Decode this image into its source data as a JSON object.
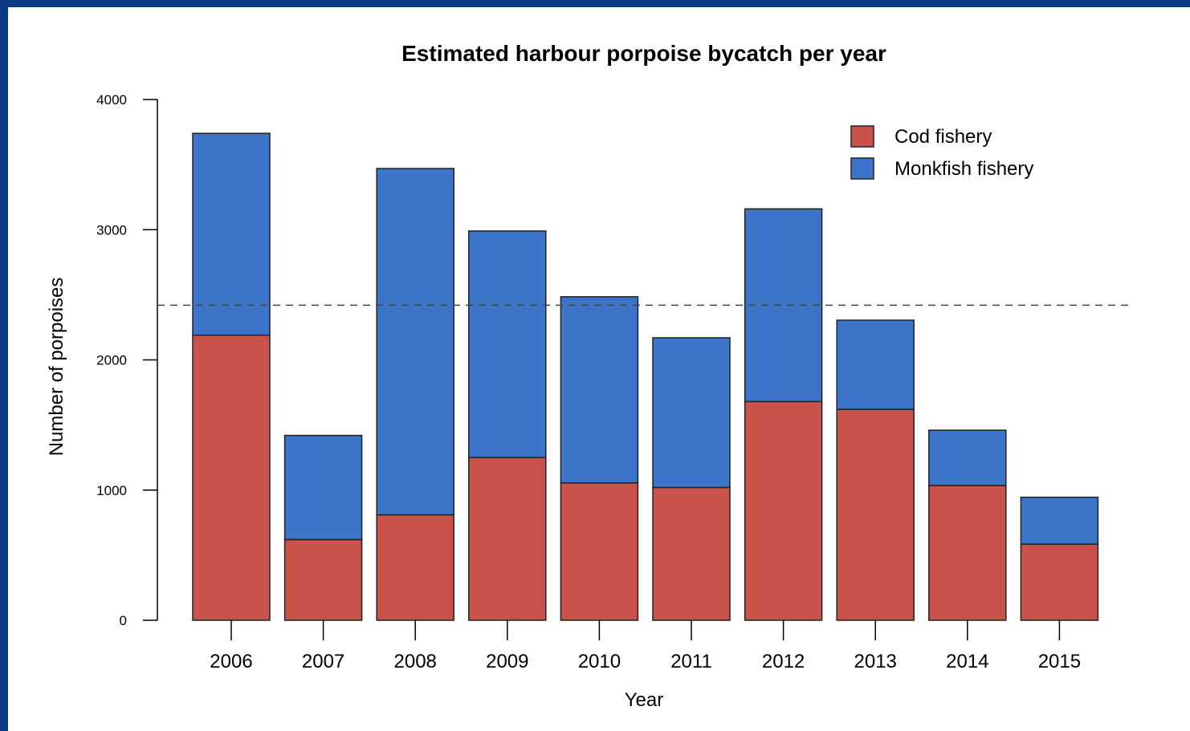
{
  "chart_data": {
    "type": "bar",
    "stacked": true,
    "title": "Estimated harbour porpoise bycatch per year",
    "xlabel": "Year",
    "ylabel": "Number of porpoises",
    "ylim": [
      0,
      4000
    ],
    "yticks": [
      "0",
      "1000",
      "2000",
      "3000",
      "4000"
    ],
    "categories": [
      "2006",
      "2007",
      "2008",
      "2009",
      "2010",
      "2011",
      "2012",
      "2013",
      "2014",
      "2015"
    ],
    "series": [
      {
        "name": "Cod fishery",
        "color": "#c9534a",
        "values": [
          2190,
          620,
          810,
          1250,
          1055,
          1020,
          1680,
          1620,
          1035,
          585
        ]
      },
      {
        "name": "Monkfish fishery",
        "color": "#3b74c9",
        "values": [
          1550,
          800,
          2660,
          1740,
          1430,
          1150,
          1480,
          685,
          425,
          360
        ]
      }
    ],
    "reference_line": {
      "value": 2420,
      "style": "dashed"
    },
    "legend_position": "top-right",
    "grid": false
  }
}
